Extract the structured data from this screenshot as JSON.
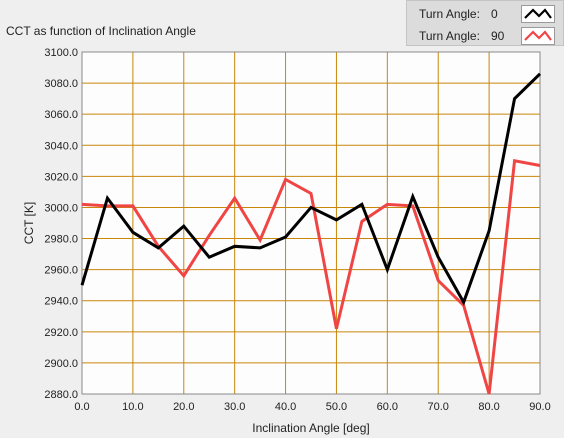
{
  "chart_data": {
    "type": "line",
    "title": "CCT as function of Inclination Angle",
    "xlabel": "Inclination Angle [deg]",
    "ylabel": "CCT [K]",
    "xlim": [
      0,
      90
    ],
    "ylim": [
      2880,
      3100
    ],
    "grid": true,
    "legend_position": "top-right",
    "x_ticks": [
      "0.0",
      "10.0",
      "20.0",
      "30.0",
      "40.0",
      "50.0",
      "60.0",
      "70.0",
      "80.0",
      "90.0"
    ],
    "y_ticks": [
      "2880.0",
      "2900.0",
      "2920.0",
      "2940.0",
      "2960.0",
      "2980.0",
      "3000.0",
      "3020.0",
      "3040.0",
      "3060.0",
      "3080.0",
      "3100.0"
    ],
    "x": [
      0,
      5,
      10,
      15,
      20,
      25,
      30,
      35,
      40,
      45,
      50,
      55,
      60,
      65,
      70,
      75,
      80,
      85,
      90
    ],
    "series": [
      {
        "name": "Turn Angle: 0",
        "legend_label": "Turn Angle:",
        "legend_value": "0",
        "color": "#000000",
        "values": [
          2950,
          3006,
          2984,
          2974,
          2988,
          2968,
          2975,
          2974,
          2981,
          3000,
          2992,
          3002,
          2960,
          3007,
          2968,
          2939,
          2985,
          3070,
          3086
        ]
      },
      {
        "name": "Turn Angle: 90",
        "legend_label": "Turn Angle:",
        "legend_value": "90",
        "color": "#f04545",
        "values": [
          3002,
          3001,
          3001,
          2975,
          2956,
          2982,
          3006,
          2979,
          3018,
          3009,
          2922,
          2991,
          3002,
          3001,
          2953,
          2937,
          2880,
          3030,
          3027
        ]
      }
    ]
  },
  "colors": {
    "plot_background": "#fdfdfd",
    "grid": "#c8860b"
  }
}
